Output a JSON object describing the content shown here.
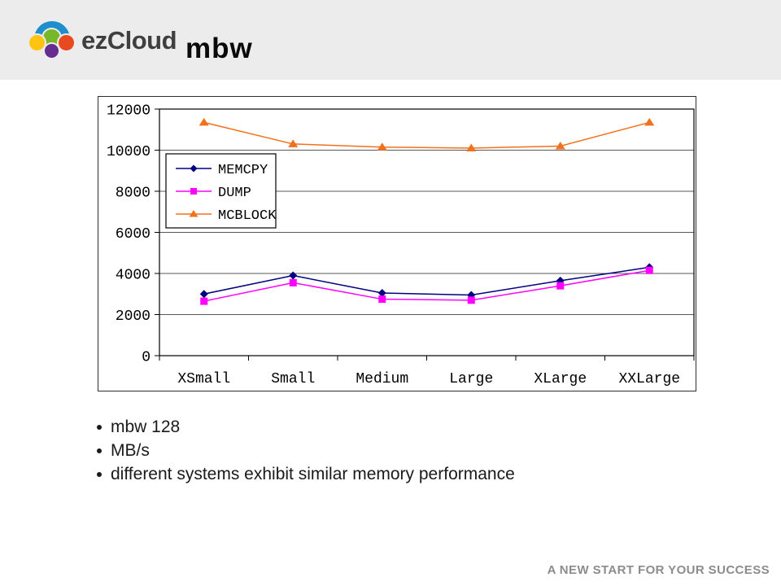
{
  "header": {
    "logo_text": "ezCloud",
    "title": "mbw"
  },
  "colors": {
    "band": "#ECECEC",
    "logo": {
      "blue": "#1E8FCC",
      "green": "#76B82A",
      "yellow": "#FFC412",
      "red": "#E8491F",
      "purple": "#662D91"
    }
  },
  "chart_data": {
    "type": "line",
    "title": "",
    "xlabel": "",
    "ylabel": "",
    "categories": [
      "XSmall",
      "Small",
      "Medium",
      "Large",
      "XLarge",
      "XXLarge"
    ],
    "series": [
      {
        "name": "MEMCPY",
        "marker": "diamond",
        "color": "#000080",
        "values": [
          3000,
          3900,
          3050,
          2950,
          3650,
          4300
        ]
      },
      {
        "name": "DUMP",
        "marker": "square",
        "color": "#FF00FF",
        "values": [
          2650,
          3550,
          2750,
          2700,
          3400,
          4150
        ]
      },
      {
        "name": "MCBLOCK",
        "marker": "triangle",
        "color": "#F2711C",
        "values": [
          11350,
          10300,
          10150,
          10100,
          10200,
          11350
        ]
      }
    ],
    "ylim": [
      0,
      12000
    ],
    "ytick_step": 2000,
    "grid": true,
    "legend_position": "inside-top-left"
  },
  "bullets": [
    "mbw 128",
    "MB/s",
    "different systems exhibit similar memory performance"
  ],
  "footer": {
    "slogan": "A NEW START FOR YOUR SUCCESS"
  }
}
